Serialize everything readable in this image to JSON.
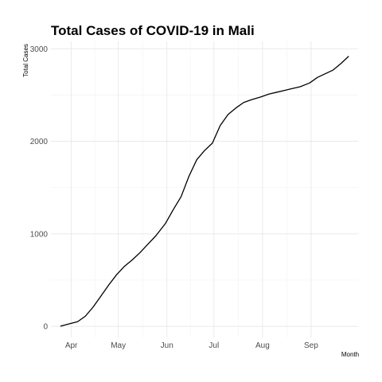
{
  "chart_data": {
    "type": "line",
    "title": "Total Cases of COVID-19 in Mali",
    "xlabel": "Month",
    "ylabel": "Total Cases",
    "x_ticks": [
      "Apr",
      "May",
      "Jun",
      "Jul",
      "Aug",
      "Sep"
    ],
    "x_tick_dates": [
      "2020-04-01",
      "2020-05-01",
      "2020-06-01",
      "2020-07-01",
      "2020-08-01",
      "2020-09-01"
    ],
    "y_ticks": [
      0,
      1000,
      2000,
      3000
    ],
    "xlim": [
      "2020-03-19",
      "2020-10-01"
    ],
    "ylim": [
      -120,
      3080
    ],
    "grid": true,
    "series": [
      {
        "x": [
          "2020-03-25",
          "2020-03-31",
          "2020-04-05",
          "2020-04-10",
          "2020-04-15",
          "2020-04-20",
          "2020-04-25",
          "2020-04-30",
          "2020-05-05",
          "2020-05-10",
          "2020-05-15",
          "2020-05-20",
          "2020-05-25",
          "2020-05-31",
          "2020-06-05",
          "2020-06-10",
          "2020-06-15",
          "2020-06-20",
          "2020-06-25",
          "2020-06-30",
          "2020-07-05",
          "2020-07-10",
          "2020-07-15",
          "2020-07-20",
          "2020-07-25",
          "2020-07-31",
          "2020-08-05",
          "2020-08-10",
          "2020-08-15",
          "2020-08-20",
          "2020-08-25",
          "2020-08-31",
          "2020-09-05",
          "2020-09-10",
          "2020-09-15",
          "2020-09-20",
          "2020-09-25"
        ],
        "y": [
          2,
          28,
          50,
          110,
          210,
          330,
          450,
          560,
          650,
          720,
          800,
          890,
          980,
          1110,
          1260,
          1400,
          1620,
          1800,
          1900,
          1980,
          2170,
          2290,
          2360,
          2420,
          2450,
          2480,
          2510,
          2530,
          2550,
          2570,
          2590,
          2630,
          2690,
          2730,
          2770,
          2840,
          2920
        ]
      }
    ]
  }
}
